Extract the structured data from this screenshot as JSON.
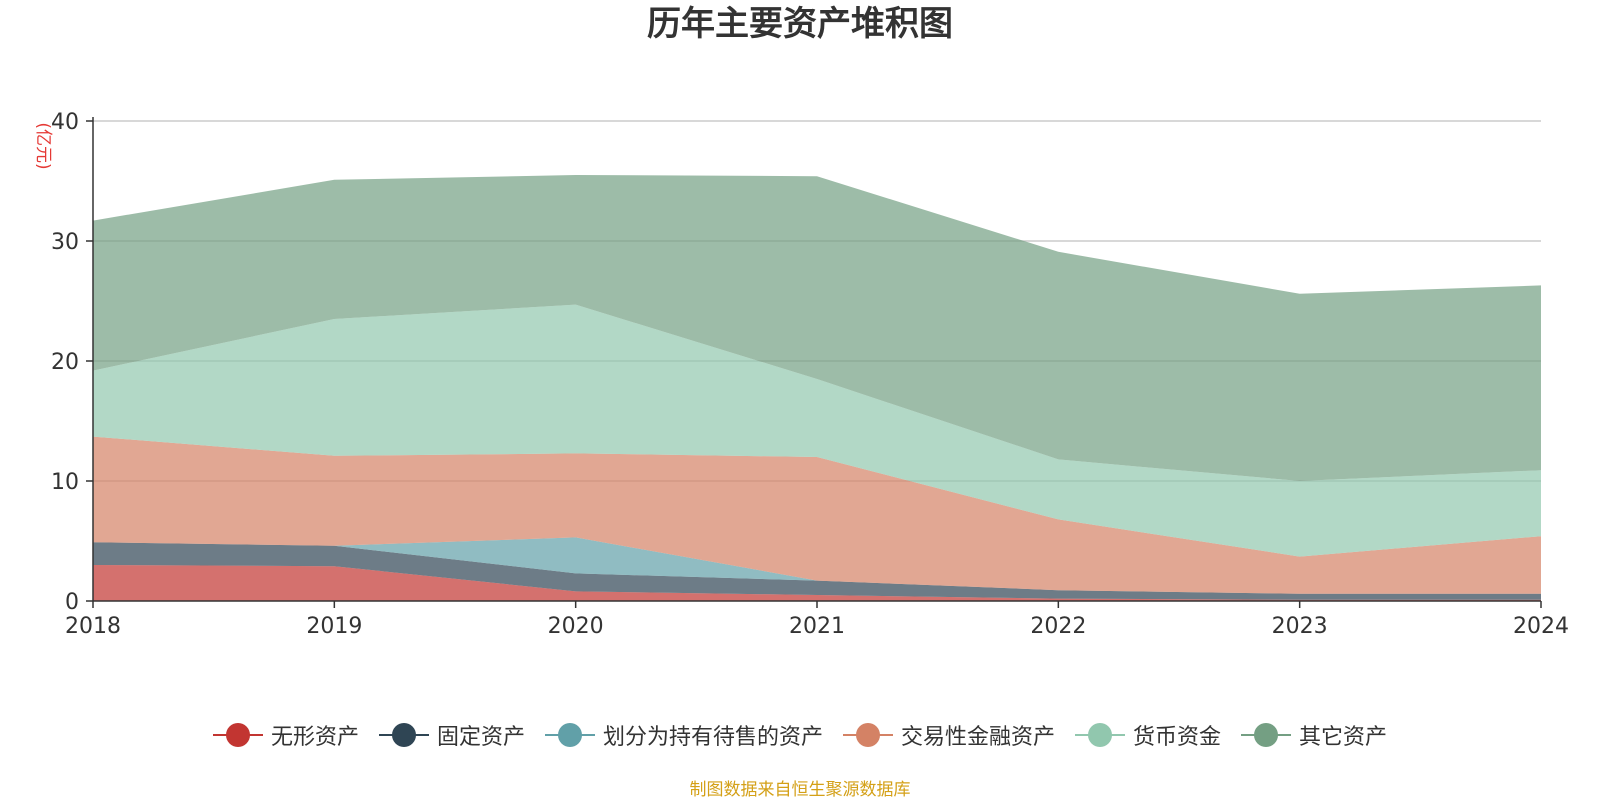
{
  "chart_data": {
    "type": "area",
    "stacked": true,
    "title": "历年主要资产堆积图",
    "ylabel": "(亿元)",
    "x": [
      "2018",
      "2019",
      "2020",
      "2021",
      "2022",
      "2023",
      "2024"
    ],
    "ylim": [
      0,
      40
    ],
    "yticks": [
      0,
      10,
      20,
      30,
      40
    ],
    "grid": true,
    "legend_position": "bottom",
    "series": [
      {
        "name": "无形资产",
        "color": "#c23531",
        "values": [
          3.0,
          2.9,
          0.8,
          0.5,
          0.2,
          0.1,
          0.1
        ]
      },
      {
        "name": "固定资产",
        "color": "#2f4554",
        "values": [
          1.9,
          1.7,
          1.5,
          1.2,
          0.7,
          0.5,
          0.5
        ]
      },
      {
        "name": "划分为持有待售的资产",
        "color": "#61a0a8",
        "values": [
          0.0,
          0.0,
          3.0,
          0.0,
          0.0,
          0.0,
          0.0
        ]
      },
      {
        "name": "交易性金融资产",
        "color": "#d48265",
        "values": [
          8.8,
          7.5,
          7.0,
          10.3,
          5.9,
          3.1,
          4.8
        ]
      },
      {
        "name": "货币资金",
        "color": "#91c7ae",
        "values": [
          5.5,
          11.4,
          12.4,
          6.5,
          5.0,
          6.3,
          5.5
        ]
      },
      {
        "name": "其它资产",
        "color": "#749f83",
        "values": [
          12.5,
          11.6,
          10.8,
          16.9,
          17.3,
          15.6,
          15.4
        ]
      }
    ]
  },
  "source_note": "制图数据来自恒生聚源数据库"
}
